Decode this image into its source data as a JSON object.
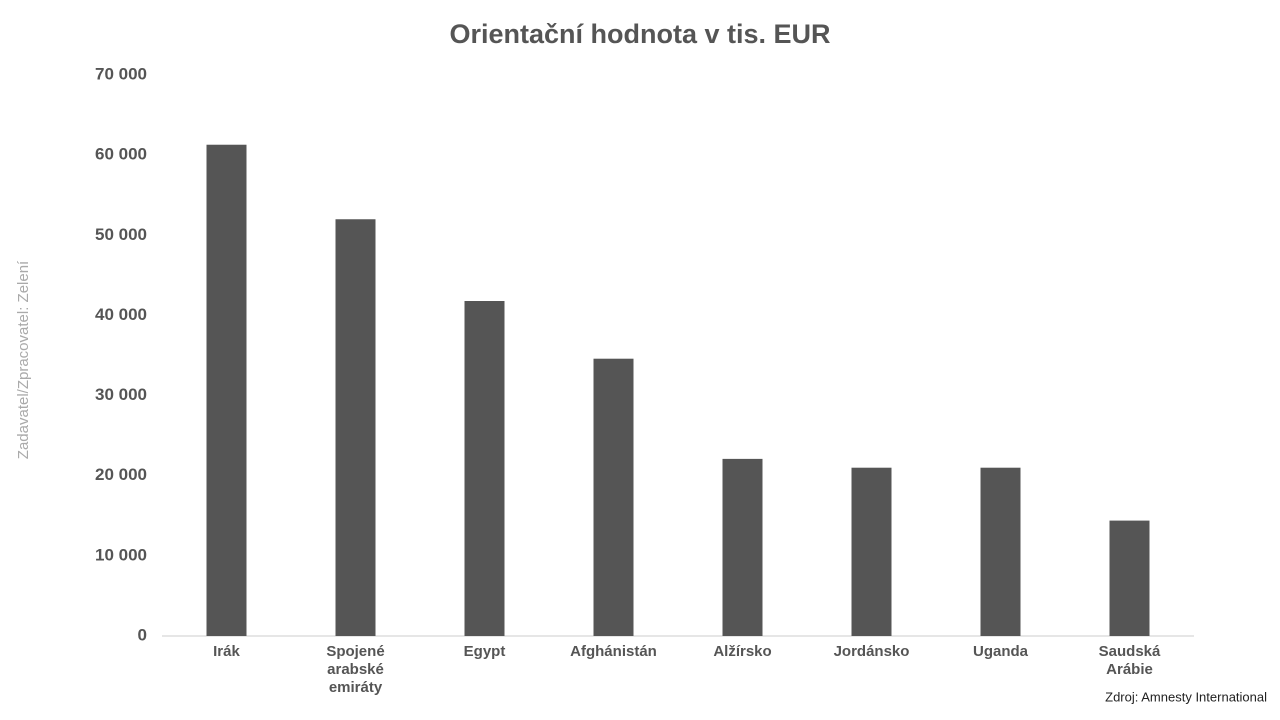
{
  "chart_data": {
    "type": "bar",
    "title": "Orientační hodnota v tis. EUR",
    "categories": [
      "Irák",
      "Spojené arabské emiráty",
      "Egypt",
      "Afghánistán",
      "Alžírsko",
      "Jordánsko",
      "Uganda",
      "Saudská Arábie"
    ],
    "values": [
      61300,
      52000,
      41800,
      34600,
      22100,
      21000,
      21000,
      14400
    ],
    "color": "#555555",
    "ylim": [
      0,
      70000
    ],
    "yticks": [
      0,
      {
        "value": 10000,
        "label": "10 000"
      },
      {
        "value": 20000,
        "label": "20 000"
      },
      {
        "value": 30000,
        "label": "30 000"
      },
      {
        "value": 40000,
        "label": "40 000"
      },
      {
        "value": 50000,
        "label": "50 000"
      },
      {
        "value": 60000,
        "label": "60 000"
      },
      {
        "value": 70000,
        "label": "70 000"
      }
    ],
    "grid": false,
    "side_note": "Zadavatel/Zpracovatel: Zelení",
    "source": "Zdroj: Amnesty International"
  }
}
